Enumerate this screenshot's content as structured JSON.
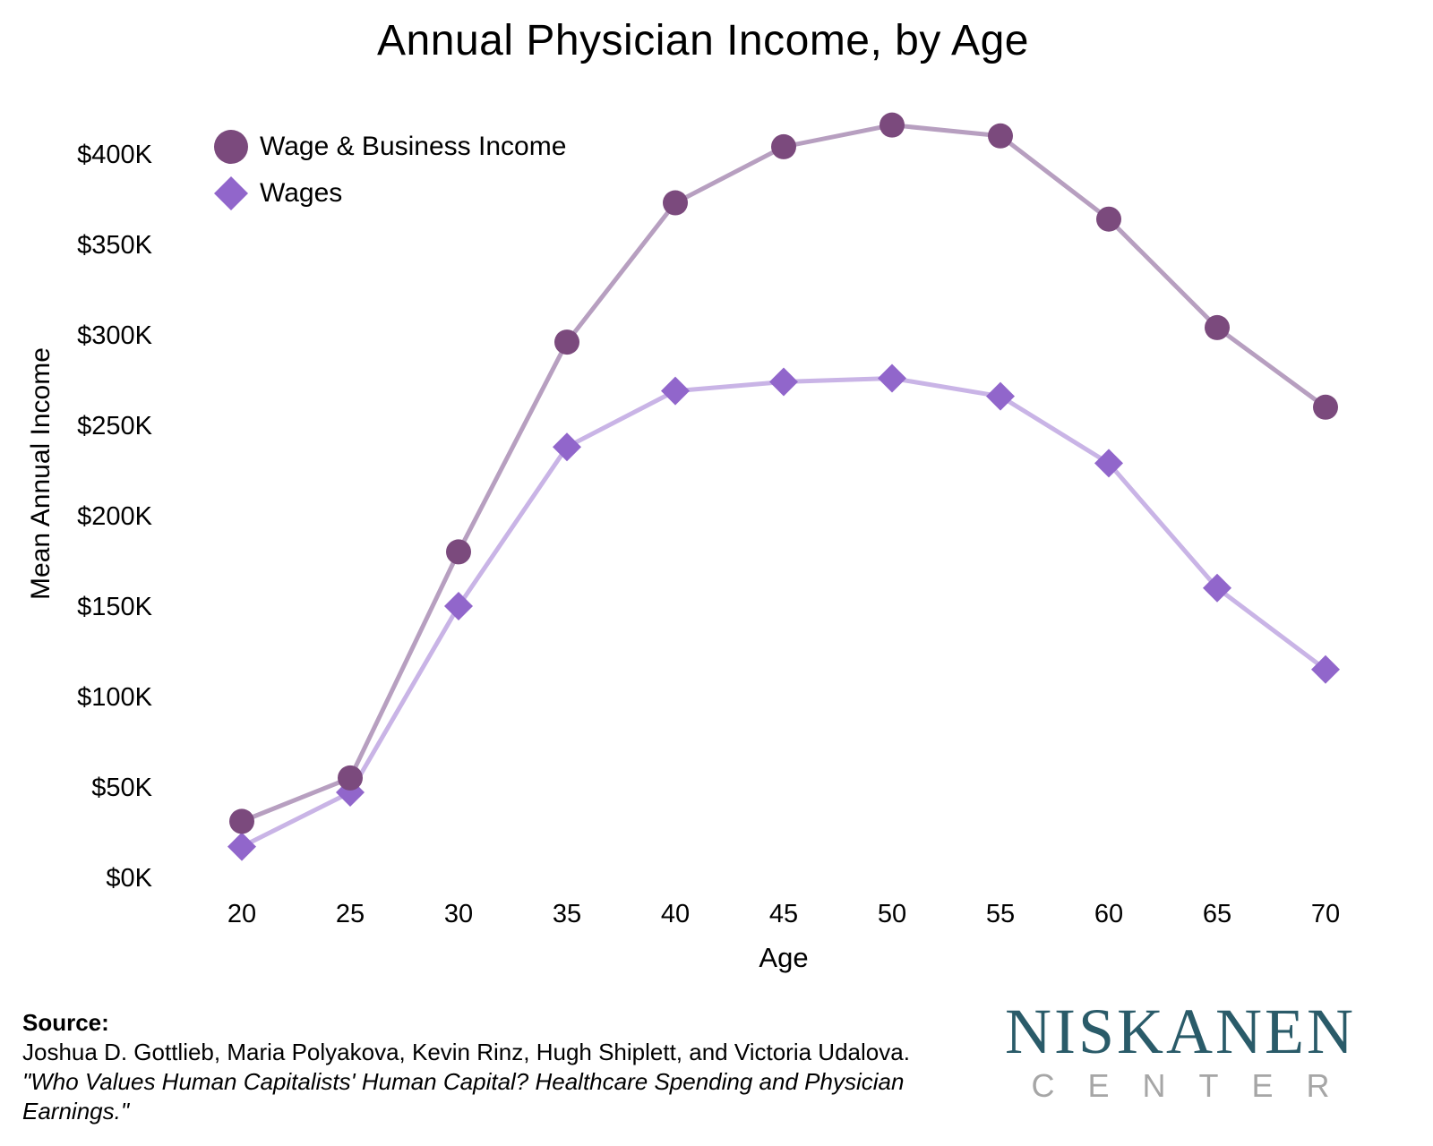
{
  "chart_data": {
    "type": "line",
    "title": "Annual Physician Income, by Age",
    "xlabel": "Age",
    "ylabel": "Mean Annual Income",
    "x": [
      20,
      25,
      30,
      35,
      40,
      45,
      50,
      55,
      60,
      65,
      70
    ],
    "series": [
      {
        "name": "Wage & Business Income",
        "marker": "circle",
        "marker_color": "#7b4a7d",
        "line_color": "#b79fc0",
        "values": [
          31,
          55,
          180,
          296,
          373,
          404,
          416,
          410,
          364,
          304,
          260
        ]
      },
      {
        "name": "Wages",
        "marker": "diamond",
        "marker_color": "#9166cb",
        "line_color": "#c9b4e6",
        "values": [
          17,
          47,
          150,
          238,
          269,
          274,
          276,
          266,
          229,
          160,
          115
        ]
      }
    ],
    "values_unit": "thousand USD per year",
    "y_ticks": [
      0,
      50,
      100,
      150,
      200,
      250,
      300,
      350,
      400
    ],
    "y_tick_prefix": "$",
    "y_tick_suffix": "K",
    "ylim": [
      0,
      430
    ],
    "xlim": [
      17,
      73
    ],
    "grid": false,
    "axis_lines": false,
    "legend_position": "top-left"
  },
  "source": {
    "heading": "Source:",
    "authors": "Joshua D. Gottlieb, Maria Polyakova, Kevin Rinz, Hugh Shiplett, and Victoria Udalova.",
    "work_line1": "\"Who Values Human Capitalists' Human Capital? Healthcare Spending and Physician",
    "work_line2": "Earnings.\""
  },
  "logo": {
    "name": "NISKANEN",
    "subname": "CENTER",
    "name_color": "#2a5b69",
    "subname_color": "#a6a6a6"
  }
}
